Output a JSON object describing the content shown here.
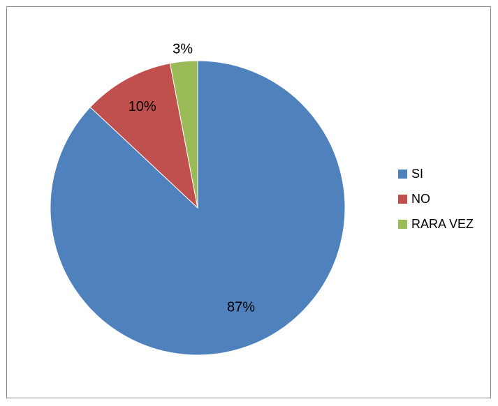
{
  "chart_data": {
    "type": "pie",
    "categories": [
      "SI",
      "NO",
      "RARA VEZ"
    ],
    "values": [
      87,
      10,
      3
    ],
    "data_labels": [
      "87%",
      "10%",
      "3%"
    ],
    "colors": [
      "#4F81BD",
      "#C0504D",
      "#9BBB59"
    ],
    "title": "",
    "start_angle_deg": 0,
    "direction": "clockwise",
    "legend_position": "right"
  },
  "legend": {
    "items": [
      {
        "label": "SI",
        "color": "#4F81BD"
      },
      {
        "label": "NO",
        "color": "#C0504D"
      },
      {
        "label": "RARA VEZ",
        "color": "#9BBB59"
      }
    ]
  }
}
